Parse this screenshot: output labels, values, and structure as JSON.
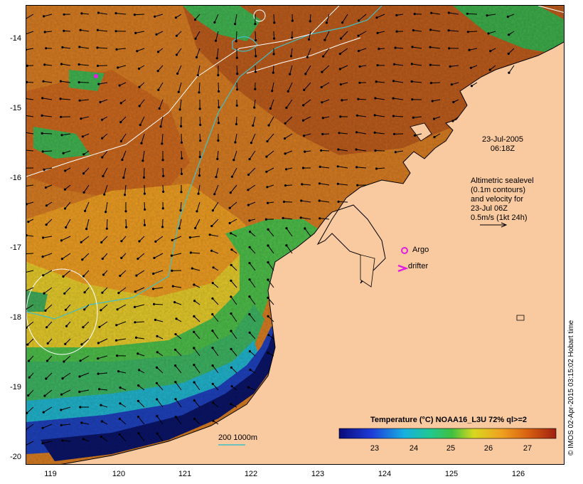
{
  "map": {
    "date": "23-Jul-2005",
    "time": "06:18Z",
    "altimetry_lines": [
      "Altimetric sealevel",
      "(0.1m contours)",
      "and velocity for",
      "23-Jul 06Z",
      "0.5m/s (1kt 24h)"
    ],
    "argo_label": "Argo",
    "drifter_label": "drifter",
    "bathy_scale_label": "200  1000m",
    "colorbar_title": "Temperature (°C) NOAA16_L3U 72% ql>=2",
    "colorbar_ticks": [
      "23",
      "24",
      "25",
      "26",
      "27"
    ],
    "credit": "© IMOS 02-Apr-2015 03:15:02 Hobart time",
    "lat_labels": [
      "-14",
      "-15",
      "-16",
      "-17",
      "-18",
      "-19",
      "-20"
    ],
    "lon_labels": [
      "119",
      "120",
      "121",
      "122",
      "123",
      "124",
      "125",
      "126"
    ],
    "colors": {
      "land": "#f9c9a0",
      "warm": "#c2641e",
      "orange": "#e8921a",
      "yellow": "#e6d22a",
      "green": "#3cb84a",
      "cyan": "#1ab0d8",
      "blue": "#1e3cb4",
      "navy": "#08105a",
      "contour": "#ffffff",
      "isobath": "#40c0c8",
      "marker": "#e020e0"
    }
  }
}
